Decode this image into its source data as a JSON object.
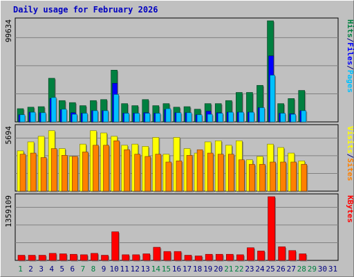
{
  "chart_data": [
    {
      "type": "bar",
      "panel": "top",
      "max_label": "99634",
      "ymax": 99634,
      "categories": [
        "1",
        "2",
        "3",
        "4",
        "5",
        "6",
        "7",
        "8",
        "9",
        "10",
        "11",
        "12",
        "13",
        "14",
        "15",
        "16",
        "17",
        "18",
        "19",
        "20",
        "21",
        "22",
        "23",
        "24",
        "25",
        "26",
        "27",
        "28",
        "29",
        "30",
        "31"
      ],
      "legend": [
        "Pages",
        "/",
        "Files",
        "/",
        "Hits"
      ],
      "series": [
        {
          "name": "Hits",
          "color": "#008040",
          "values": [
            13000,
            14500,
            15000,
            43000,
            21000,
            19000,
            16000,
            21000,
            22000,
            51000,
            18000,
            16000,
            22000,
            16000,
            18000,
            14500,
            15000,
            12500,
            18000,
            18000,
            21000,
            29000,
            29000,
            36000,
            99634,
            18000,
            23000,
            31000,
            null,
            null,
            null
          ]
        },
        {
          "name": "Files",
          "color": "#0000ff",
          "values": [
            7000,
            9500,
            9000,
            23000,
            12000,
            9000,
            8500,
            11000,
            11000,
            38000,
            8500,
            8500,
            9000,
            8500,
            12000,
            9000,
            9000,
            7000,
            10500,
            9000,
            9500,
            9500,
            9500,
            14000,
            65000,
            8500,
            8000,
            11000,
            null,
            null,
            null
          ]
        },
        {
          "name": "Pages",
          "color": "#00c0ff",
          "values": [
            7000,
            9500,
            9000,
            24000,
            12500,
            7500,
            8500,
            11000,
            11000,
            27000,
            8500,
            8500,
            8500,
            8500,
            13000,
            9000,
            9000,
            7000,
            7500,
            8500,
            9500,
            9500,
            9500,
            14000,
            46000,
            8500,
            7500,
            11000,
            null,
            null,
            null
          ]
        }
      ]
    },
    {
      "type": "bar",
      "panel": "middle",
      "max_label": "5694",
      "ymax": 5694,
      "categories": [
        "1",
        "2",
        "3",
        "4",
        "5",
        "6",
        "7",
        "8",
        "9",
        "10",
        "11",
        "12",
        "13",
        "14",
        "15",
        "16",
        "17",
        "18",
        "19",
        "20",
        "21",
        "22",
        "23",
        "24",
        "25",
        "26",
        "27",
        "28",
        "29",
        "30",
        "31"
      ],
      "legend": [
        "Sites",
        "/",
        "Visits"
      ],
      "series": [
        {
          "name": "Visits",
          "color": "#ffff00",
          "values": [
            3600,
            4400,
            4900,
            5400,
            3800,
            3100,
            4200,
            5400,
            5200,
            4900,
            4100,
            4200,
            4000,
            4800,
            3300,
            4800,
            3800,
            3400,
            4400,
            4500,
            4100,
            4500,
            2800,
            3100,
            4200,
            3900,
            3400,
            2700,
            null,
            null,
            null
          ]
        },
        {
          "name": "Sites",
          "color": "#ff8000",
          "values": [
            3300,
            3400,
            3000,
            3800,
            3200,
            3100,
            3500,
            4100,
            4100,
            4500,
            3700,
            3300,
            3100,
            3300,
            2600,
            2700,
            3200,
            3700,
            3400,
            3300,
            3300,
            2800,
            2400,
            2400,
            2600,
            2600,
            2600,
            2400,
            null,
            null,
            null
          ]
        }
      ]
    },
    {
      "type": "bar",
      "panel": "bottom",
      "max_label": "1359109",
      "ymax": 1359109,
      "categories": [
        "1",
        "2",
        "3",
        "4",
        "5",
        "6",
        "7",
        "8",
        "9",
        "10",
        "11",
        "12",
        "13",
        "14",
        "15",
        "16",
        "17",
        "18",
        "19",
        "20",
        "21",
        "22",
        "23",
        "24",
        "25",
        "26",
        "27",
        "28",
        "29",
        "30",
        "31"
      ],
      "legend": [
        "KBytes"
      ],
      "series": [
        {
          "name": "KBytes",
          "color": "#ff0000",
          "values": [
            110000,
            110000,
            110000,
            150000,
            140000,
            130000,
            120000,
            150000,
            110000,
            610000,
            120000,
            120000,
            140000,
            280000,
            190000,
            190000,
            110000,
            95000,
            130000,
            130000,
            130000,
            120000,
            270000,
            200000,
            1359109,
            290000,
            210000,
            140000,
            null,
            null,
            null
          ]
        }
      ]
    }
  ],
  "title": "Daily usage for February 2026",
  "x_labels": [
    "1",
    "2",
    "3",
    "4",
    "5",
    "6",
    "7",
    "8",
    "9",
    "10",
    "11",
    "12",
    "13",
    "14",
    "15",
    "16",
    "17",
    "18",
    "19",
    "20",
    "21",
    "22",
    "23",
    "24",
    "25",
    "26",
    "27",
    "28",
    "29",
    "30",
    "31"
  ],
  "weekend_days": [
    "1",
    "7",
    "8",
    "14",
    "15",
    "21",
    "22",
    "28",
    "29"
  ],
  "colors": {
    "weekday": "#000080",
    "weekend": "#008040",
    "title": "#0000c0",
    "slash": "#000080"
  }
}
